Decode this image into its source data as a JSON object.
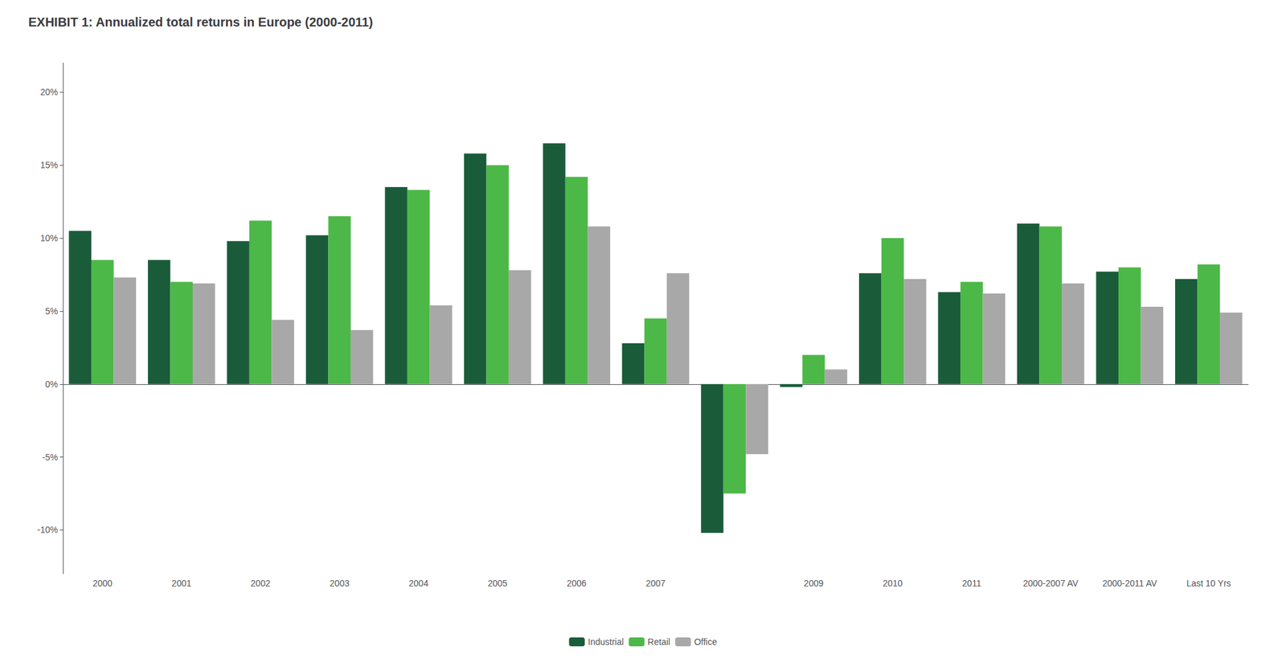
{
  "chart_data": {
    "type": "bar",
    "title": "EXHIBIT 1: Annualized total returns in Europe (2000-2011)",
    "categories": [
      "2000",
      "2001",
      "2002",
      "2003",
      "2004",
      "2005",
      "2006",
      "2007",
      null,
      "2009",
      "2010",
      "2011",
      "2000-2007 AV",
      "2000-2011 AV",
      "Last 10 Yrs"
    ],
    "series": [
      {
        "name": "Industrial",
        "color": "#1a5c3a",
        "values": [
          0.105,
          0.085,
          0.098,
          0.102,
          0.135,
          0.158,
          0.165,
          0.028,
          -0.102,
          -0.002,
          0.076,
          0.063,
          0.11,
          0.077,
          0.072
        ]
      },
      {
        "name": "Retail",
        "color": "#4cb847",
        "values": [
          0.085,
          0.07,
          0.112,
          0.115,
          0.133,
          0.15,
          0.142,
          0.045,
          -0.075,
          0.02,
          0.1,
          0.07,
          0.108,
          0.08,
          0.082
        ]
      },
      {
        "name": "Office",
        "color": "#a8a8a8",
        "values": [
          0.073,
          0.069,
          0.044,
          0.037,
          0.054,
          0.078,
          0.108,
          0.076,
          -0.048,
          0.01,
          0.072,
          0.062,
          0.069,
          0.053,
          0.049
        ]
      }
    ],
    "ylim": [
      -0.13,
      0.22
    ],
    "yticks": [
      {
        "value": -0.1,
        "label": "-10%"
      },
      {
        "value": -0.05,
        "label": "-5%"
      },
      {
        "value": 0,
        "label": "0%"
      },
      {
        "value": 0.05,
        "label": "5%"
      },
      {
        "value": 0.1,
        "label": "10%"
      },
      {
        "value": 0.15,
        "label": "15%"
      },
      {
        "value": 0.2,
        "label": "20%"
      }
    ],
    "grid": false,
    "legend": "bottom"
  }
}
